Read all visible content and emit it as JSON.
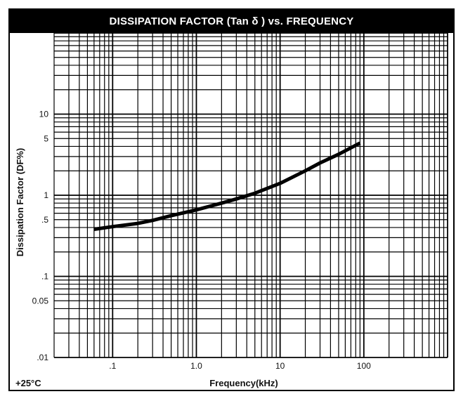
{
  "chart_data": {
    "type": "line",
    "title": "DISSIPATION FACTOR (Tan δ ) vs. FREQUENCY",
    "xlabel": "Frequency(kHz)",
    "ylabel": "Dissipation Factor (DF%)",
    "x_scale": "log",
    "y_scale": "log",
    "xlim": [
      0.02,
      1000
    ],
    "ylim": [
      0.01,
      100
    ],
    "x_ticks": [
      {
        "value": 0.1,
        "label": ".1"
      },
      {
        "value": 1,
        "label": "1.0"
      },
      {
        "value": 10,
        "label": "10"
      },
      {
        "value": 100,
        "label": "100"
      }
    ],
    "y_ticks": [
      {
        "value": 0.01,
        "label": ".01"
      },
      {
        "value": 0.05,
        "label": "0.05"
      },
      {
        "value": 0.1,
        "label": ".1"
      },
      {
        "value": 0.5,
        "label": ".5"
      },
      {
        "value": 1,
        "label": "1"
      },
      {
        "value": 5,
        "label": "5"
      },
      {
        "value": 10,
        "label": "10"
      }
    ],
    "grid": true,
    "annotation": "+25°C",
    "series": [
      {
        "x": [
          0.06,
          0.1,
          0.2,
          0.3,
          0.5,
          1,
          2,
          3,
          5,
          10,
          20,
          30,
          50,
          90
        ],
        "y": [
          0.38,
          0.41,
          0.45,
          0.49,
          0.56,
          0.66,
          0.8,
          0.9,
          1.06,
          1.4,
          2.0,
          2.5,
          3.2,
          4.4
        ]
      }
    ]
  }
}
